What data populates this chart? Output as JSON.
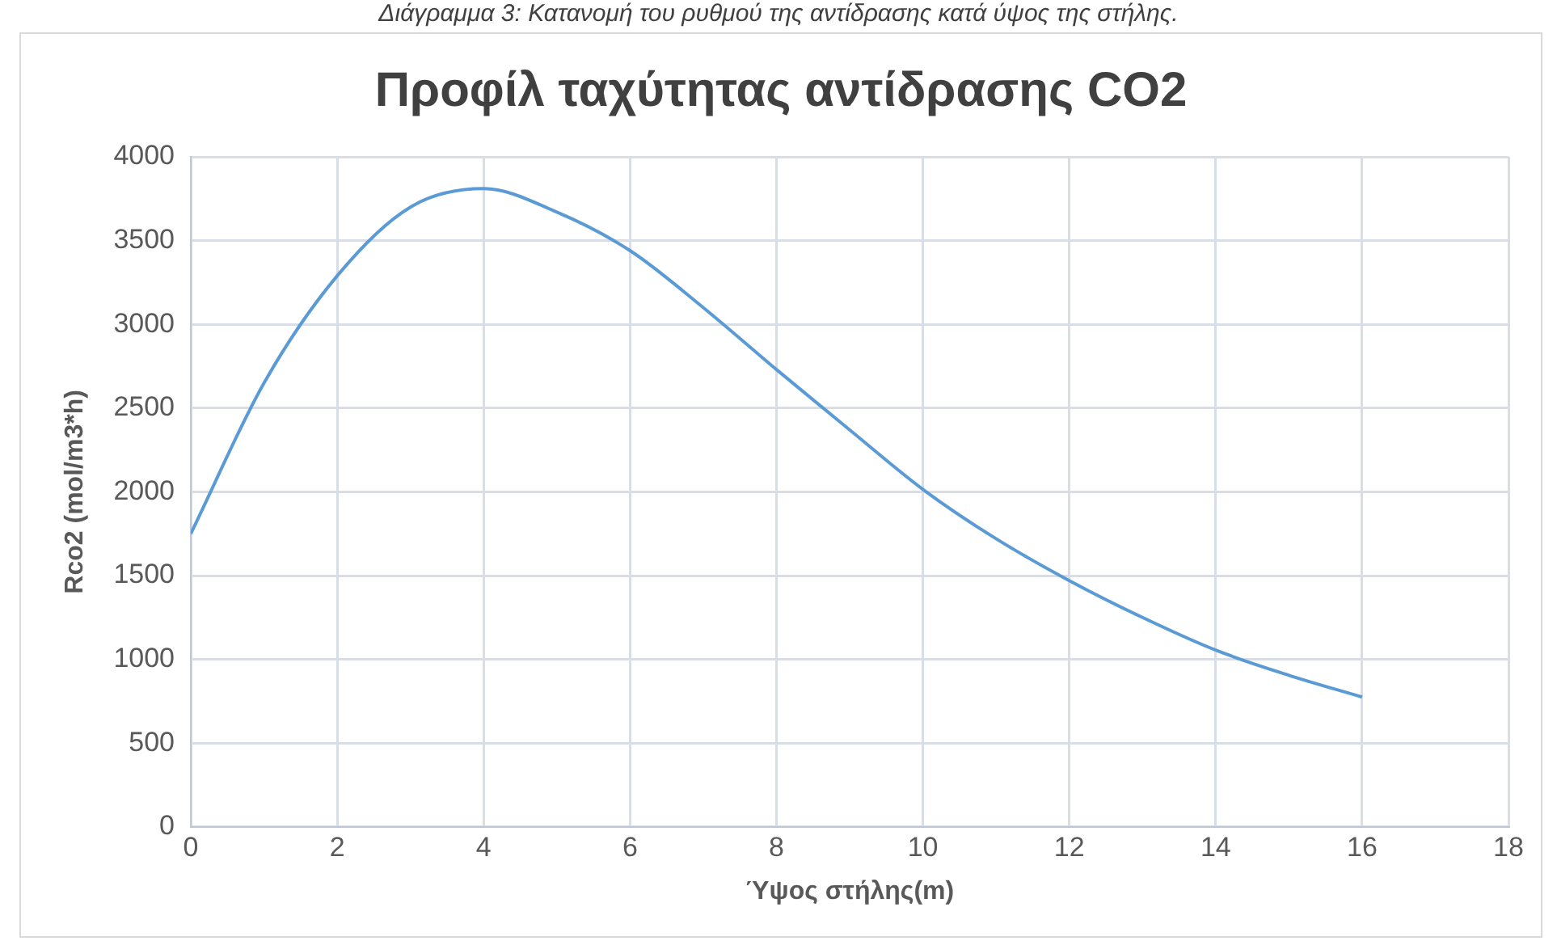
{
  "chart_data": {
    "type": "line",
    "title": "Προφίλ ταχύτητας αντίδρασης CO2",
    "annotations": [
      "Διάγραμμα 3: Κατανομή του ρυθμού της αντίδρασης κατά ύψος της στήλης."
    ],
    "xlabel": "Ύψος στήλης(m)",
    "ylabel": "Rco2 (mol/m3*h)",
    "x": [
      0,
      1,
      2,
      3,
      4,
      5,
      6,
      7,
      8,
      9,
      10,
      11,
      12,
      13,
      14,
      15,
      16
    ],
    "series": [
      {
        "color": "#5b9bd5",
        "values": [
          1750,
          2650,
          3290,
          3700,
          3810,
          3670,
          3440,
          3100,
          2730,
          2370,
          2015,
          1720,
          1470,
          1250,
          1055,
          905,
          775
        ]
      }
    ],
    "xlim": [
      0,
      18
    ],
    "xticks": [
      0,
      2,
      4,
      6,
      8,
      10,
      12,
      14,
      16,
      18
    ],
    "ylim": [
      0,
      4000
    ],
    "yticks": [
      0,
      500,
      1000,
      1500,
      2000,
      2500,
      3000,
      3500,
      4000
    ],
    "grid": true,
    "legend": false,
    "marker": "none",
    "line_style": "solid"
  }
}
